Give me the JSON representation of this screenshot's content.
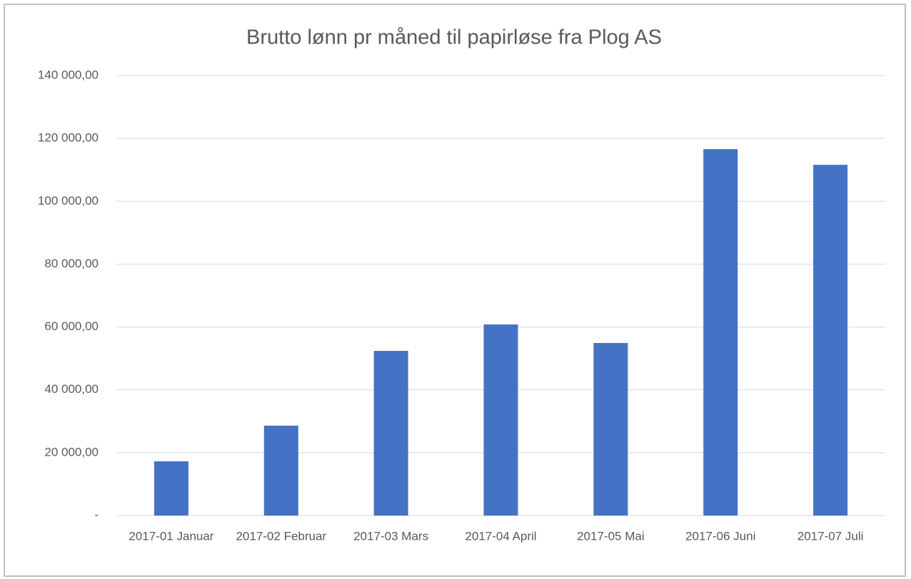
{
  "chart_data": {
    "type": "bar",
    "title": "Brutto lønn pr måned til papirløse fra Plog AS",
    "categories": [
      "2017-01 Januar",
      "2017-02 Februar",
      "2017-03 Mars",
      "2017-04 April",
      "2017-05 Mai",
      "2017-06 Juni",
      "2017-07 Juli"
    ],
    "values": [
      17250,
      28600,
      52400,
      60800,
      54900,
      116600,
      111600
    ],
    "color": "#4472c4",
    "ylim": [
      0,
      140000
    ],
    "yticks": [
      {
        "value": 0,
        "label": "-"
      },
      {
        "value": 20000,
        "label": "20 000,00"
      },
      {
        "value": 40000,
        "label": "40 000,00"
      },
      {
        "value": 60000,
        "label": "60 000,00"
      },
      {
        "value": 80000,
        "label": "80 000,00"
      },
      {
        "value": 100000,
        "label": "100 000,00"
      },
      {
        "value": 120000,
        "label": "120 000,00"
      },
      {
        "value": 140000,
        "label": "140 000,00"
      }
    ],
    "grid": true
  }
}
